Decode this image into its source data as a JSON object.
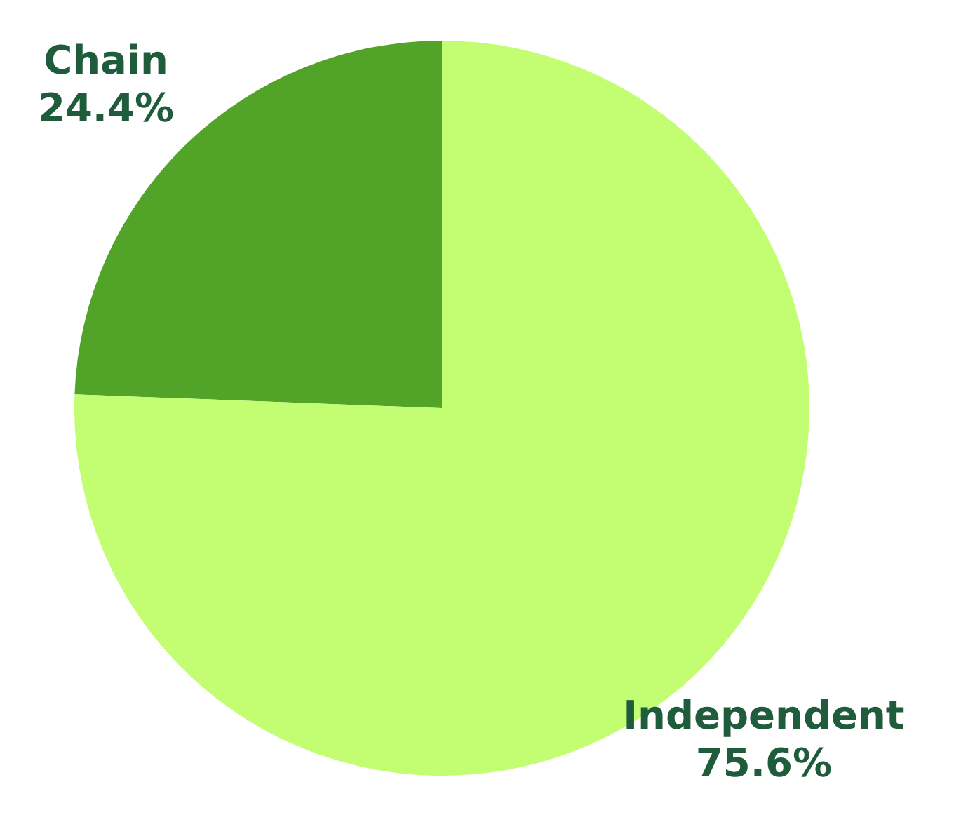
{
  "chart_data": {
    "type": "pie",
    "categories": [
      "Chain",
      "Independent"
    ],
    "values": [
      24.4,
      75.6
    ],
    "colors": [
      "#52a428",
      "#c2fd72"
    ],
    "value_labels": [
      "24.4%",
      "75.6%"
    ]
  }
}
